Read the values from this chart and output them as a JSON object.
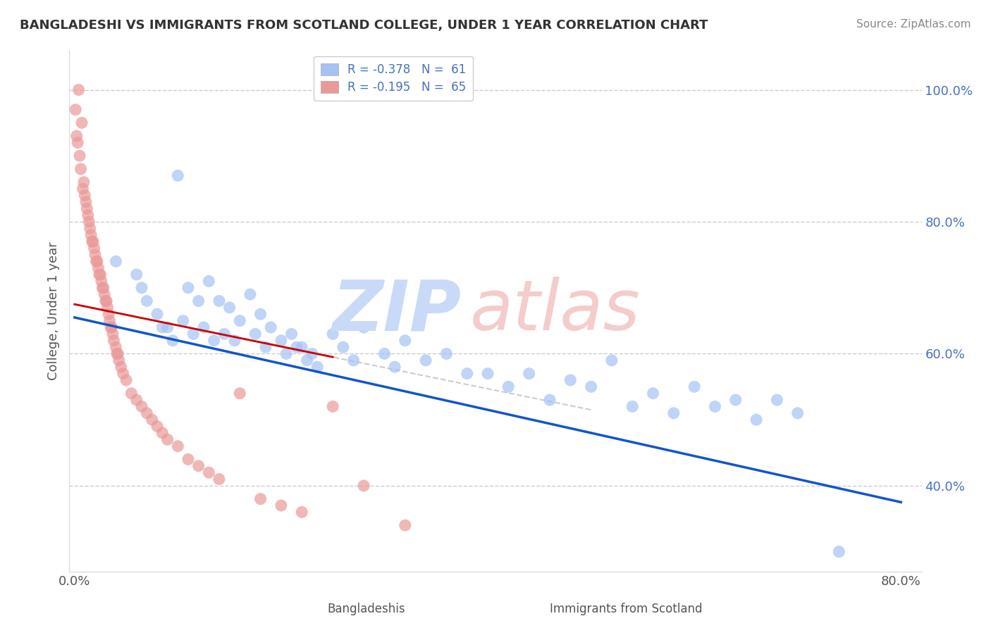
{
  "title": "BANGLADESHI VS IMMIGRANTS FROM SCOTLAND COLLEGE, UNDER 1 YEAR CORRELATION CHART",
  "source": "Source: ZipAtlas.com",
  "ylabel": "College, Under 1 year",
  "xlim": [
    -0.005,
    0.82
  ],
  "ylim": [
    0.27,
    1.06
  ],
  "x_ticks": [
    0.0,
    0.1,
    0.2,
    0.3,
    0.4,
    0.5,
    0.6,
    0.7,
    0.8
  ],
  "x_tick_labels": [
    "0.0%",
    "",
    "",
    "",
    "",
    "",
    "",
    "",
    "80.0%"
  ],
  "y_ticks_right": [
    0.4,
    0.6,
    0.8,
    1.0
  ],
  "y_tick_labels_right": [
    "40.0%",
    "60.0%",
    "80.0%",
    "100.0%"
  ],
  "legend_R1": "R = -0.378",
  "legend_N1": "N =  61",
  "legend_R2": "R = -0.195",
  "legend_N2": "N =  65",
  "blue_color": "#a4c2f4",
  "pink_color": "#ea9999",
  "blue_line_color": "#1155cc",
  "pink_line_color": "#cc0000",
  "dashed_line_color": "#cccccc",
  "watermark_zip_color": "#c9daf8",
  "watermark_atlas_color": "#f4cccc",
  "blue_x": [
    0.04,
    0.06,
    0.065,
    0.07,
    0.08,
    0.085,
    0.09,
    0.095,
    0.1,
    0.105,
    0.11,
    0.115,
    0.12,
    0.125,
    0.13,
    0.135,
    0.14,
    0.145,
    0.15,
    0.155,
    0.16,
    0.17,
    0.175,
    0.18,
    0.185,
    0.19,
    0.2,
    0.205,
    0.21,
    0.215,
    0.22,
    0.225,
    0.23,
    0.235,
    0.25,
    0.26,
    0.27,
    0.28,
    0.3,
    0.31,
    0.32,
    0.34,
    0.36,
    0.38,
    0.4,
    0.42,
    0.44,
    0.46,
    0.48,
    0.5,
    0.52,
    0.54,
    0.56,
    0.58,
    0.6,
    0.62,
    0.64,
    0.66,
    0.68,
    0.7,
    0.74
  ],
  "blue_y": [
    0.74,
    0.72,
    0.7,
    0.68,
    0.66,
    0.64,
    0.64,
    0.62,
    0.87,
    0.65,
    0.7,
    0.63,
    0.68,
    0.64,
    0.71,
    0.62,
    0.68,
    0.63,
    0.67,
    0.62,
    0.65,
    0.69,
    0.63,
    0.66,
    0.61,
    0.64,
    0.62,
    0.6,
    0.63,
    0.61,
    0.61,
    0.59,
    0.6,
    0.58,
    0.63,
    0.61,
    0.59,
    0.64,
    0.6,
    0.58,
    0.62,
    0.59,
    0.6,
    0.57,
    0.57,
    0.55,
    0.57,
    0.53,
    0.56,
    0.55,
    0.59,
    0.52,
    0.54,
    0.51,
    0.55,
    0.52,
    0.53,
    0.5,
    0.53,
    0.51,
    0.3
  ],
  "pink_x": [
    0.001,
    0.002,
    0.003,
    0.004,
    0.005,
    0.006,
    0.007,
    0.008,
    0.009,
    0.01,
    0.011,
    0.012,
    0.013,
    0.014,
    0.015,
    0.016,
    0.017,
    0.018,
    0.019,
    0.02,
    0.021,
    0.022,
    0.023,
    0.024,
    0.025,
    0.026,
    0.027,
    0.028,
    0.029,
    0.03,
    0.031,
    0.032,
    0.033,
    0.034,
    0.035,
    0.036,
    0.037,
    0.038,
    0.04,
    0.041,
    0.042,
    0.043,
    0.045,
    0.047,
    0.05,
    0.055,
    0.06,
    0.065,
    0.07,
    0.075,
    0.08,
    0.085,
    0.09,
    0.1,
    0.11,
    0.12,
    0.13,
    0.14,
    0.16,
    0.18,
    0.2,
    0.22,
    0.25,
    0.28,
    0.32
  ],
  "pink_y": [
    0.97,
    0.93,
    0.92,
    1.0,
    0.9,
    0.88,
    0.95,
    0.85,
    0.86,
    0.84,
    0.83,
    0.82,
    0.81,
    0.8,
    0.79,
    0.78,
    0.77,
    0.77,
    0.76,
    0.75,
    0.74,
    0.74,
    0.73,
    0.72,
    0.72,
    0.71,
    0.7,
    0.7,
    0.69,
    0.68,
    0.68,
    0.67,
    0.66,
    0.65,
    0.64,
    0.64,
    0.63,
    0.62,
    0.61,
    0.6,
    0.6,
    0.59,
    0.58,
    0.57,
    0.56,
    0.54,
    0.53,
    0.52,
    0.51,
    0.5,
    0.49,
    0.48,
    0.47,
    0.46,
    0.44,
    0.43,
    0.42,
    0.41,
    0.54,
    0.38,
    0.37,
    0.36,
    0.52,
    0.4,
    0.34
  ],
  "blue_line_x0": 0.0,
  "blue_line_y0": 0.655,
  "blue_line_x1": 0.8,
  "blue_line_y1": 0.375,
  "pink_line_x0": 0.0,
  "pink_line_y0": 0.675,
  "pink_line_x1": 0.25,
  "pink_line_y1": 0.595,
  "dashed_line_x0": 0.0,
  "dashed_line_y0": 0.675,
  "dashed_line_x1": 0.5,
  "dashed_line_y1": 0.515
}
